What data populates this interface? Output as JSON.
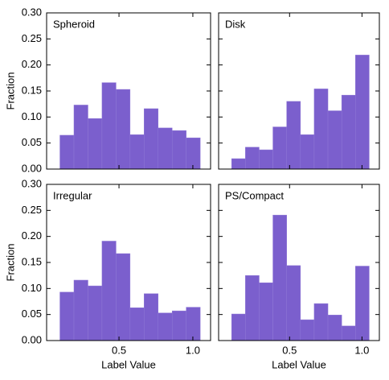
{
  "chart_data": [
    {
      "type": "histogram",
      "title": "Spheroid",
      "ylabel": "Fraction",
      "color": "#7b5fcd",
      "bins": [
        0.1,
        0.195,
        0.29,
        0.385,
        0.48,
        0.575,
        0.67,
        0.765,
        0.86,
        0.955,
        1.05
      ],
      "values": [
        0.065,
        0.123,
        0.097,
        0.166,
        0.153,
        0.066,
        0.116,
        0.079,
        0.074,
        0.06
      ],
      "xlim": [
        0.01,
        1.12
      ],
      "ylim": [
        0,
        0.3
      ],
      "xticks": [
        0.5,
        1
      ],
      "yticks": [
        {
          "value": 0,
          "label": "0.00"
        },
        {
          "value": 0.05,
          "label": "0.05"
        },
        {
          "value": 0.1,
          "label": "0.10"
        },
        {
          "value": 0.15,
          "label": "0.15"
        },
        {
          "value": 0.2,
          "label": "0.20"
        },
        {
          "value": 0.25,
          "label": "0.25"
        },
        {
          "value": 0.3,
          "label": "0.30"
        }
      ]
    },
    {
      "type": "histogram",
      "title": "Disk",
      "color": "#7b5fcd",
      "bins": [
        0.1,
        0.195,
        0.29,
        0.385,
        0.48,
        0.575,
        0.67,
        0.765,
        0.86,
        0.955,
        1.05
      ],
      "values": [
        0.02,
        0.042,
        0.037,
        0.081,
        0.13,
        0.066,
        0.154,
        0.112,
        0.142,
        0.219
      ],
      "xlim": [
        0.01,
        1.12
      ],
      "ylim": [
        0,
        0.3
      ],
      "xticks": [
        0.5,
        1
      ],
      "yticks": [
        0,
        0.05,
        0.1,
        0.15,
        0.2,
        0.25,
        0.3
      ]
    },
    {
      "type": "histogram",
      "title": "Irregular",
      "ylabel": "Fraction",
      "xlabel": "Label Value",
      "color": "#7b5fcd",
      "bins": [
        0.1,
        0.195,
        0.29,
        0.385,
        0.48,
        0.575,
        0.67,
        0.765,
        0.86,
        0.955,
        1.05
      ],
      "values": [
        0.093,
        0.116,
        0.105,
        0.191,
        0.167,
        0.063,
        0.09,
        0.053,
        0.057,
        0.064
      ],
      "xlim": [
        0.01,
        1.12
      ],
      "ylim": [
        0,
        0.3
      ],
      "xticks": [
        0.5,
        {
          "value": 1,
          "label": "1.0"
        }
      ],
      "yticks": [
        {
          "value": 0,
          "label": "0.00"
        },
        {
          "value": 0.05,
          "label": "0.05"
        },
        {
          "value": 0.1,
          "label": "0.10"
        },
        {
          "value": 0.15,
          "label": "0.15"
        },
        {
          "value": 0.2,
          "label": "0.20"
        },
        {
          "value": 0.25,
          "label": "0.25"
        },
        {
          "value": 0.3,
          "label": "0.30"
        }
      ]
    },
    {
      "type": "histogram",
      "title": "PS/Compact",
      "xlabel": "Label Value",
      "color": "#7b5fcd",
      "bins": [
        0.1,
        0.195,
        0.29,
        0.385,
        0.48,
        0.575,
        0.67,
        0.765,
        0.86,
        0.955,
        1.05
      ],
      "values": [
        0.051,
        0.125,
        0.111,
        0.241,
        0.144,
        0.04,
        0.071,
        0.049,
        0.028,
        0.143
      ],
      "xlim": [
        0.01,
        1.12
      ],
      "ylim": [
        0,
        0.3
      ],
      "xticks": [
        0.5,
        {
          "value": 1,
          "label": "1.0"
        }
      ],
      "yticks": [
        0,
        0.05,
        0.1,
        0.15,
        0.2,
        0.25,
        0.3
      ]
    }
  ]
}
